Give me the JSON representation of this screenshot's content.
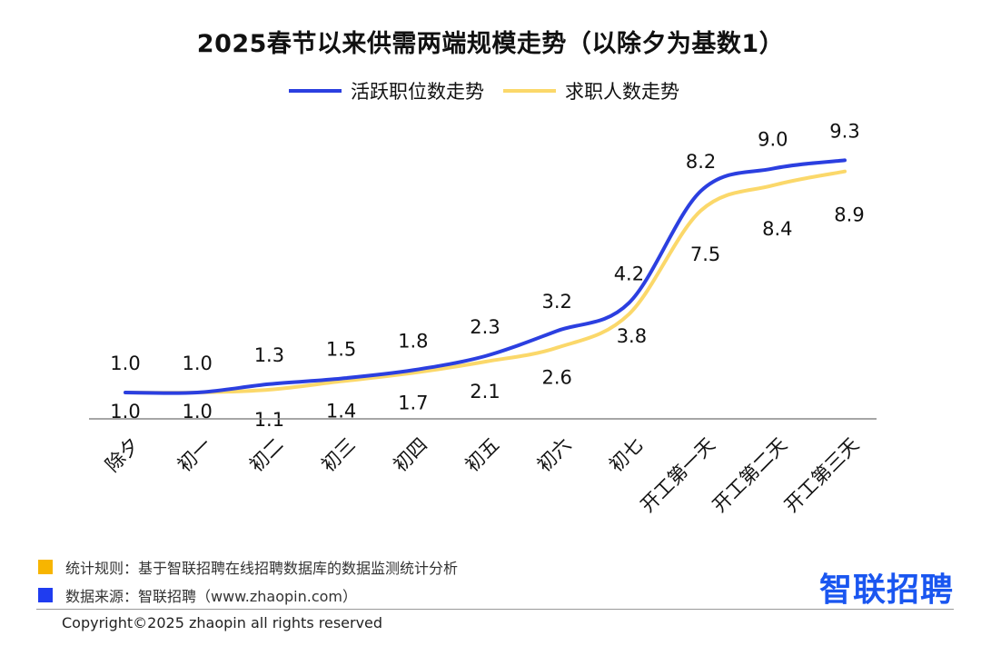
{
  "chart_data": {
    "type": "line",
    "title": "2025春节以来供需两端规模走势（以除夕为基数1）",
    "categories": [
      "除夕",
      "初一",
      "初二",
      "初三",
      "初四",
      "初五",
      "初六",
      "初七",
      "开工第一天",
      "开工第二天",
      "开工第三天"
    ],
    "series": [
      {
        "name": "活跃职位数走势",
        "color": "#2b3fe0",
        "values": [
          1.0,
          1.0,
          1.3,
          1.5,
          1.8,
          2.3,
          3.2,
          4.2,
          8.2,
          9.0,
          9.3
        ],
        "labels": [
          "1.0",
          "1.0",
          "1.3",
          "1.5",
          "1.8",
          "2.3",
          "3.2",
          "4.2",
          "8.2",
          "9.0",
          "9.3"
        ]
      },
      {
        "name": "求职人数走势",
        "color": "#fbd86a",
        "values": [
          1.0,
          1.0,
          1.1,
          1.4,
          1.7,
          2.1,
          2.6,
          3.8,
          7.5,
          8.4,
          8.9
        ],
        "labels": [
          "1.0",
          "1.0",
          "1.1",
          "1.4",
          "1.7",
          "2.1",
          "2.6",
          "3.8",
          "7.5",
          "8.4",
          "8.9"
        ]
      }
    ],
    "legend_position": "top-center",
    "grid": false
  },
  "footnotes": [
    {
      "text": "统计规则：基于智联招聘在线招聘数据库的数据监测统计分析",
      "color": "#f7b500"
    },
    {
      "text": "数据来源：智联招聘（www.zhaopin.com）",
      "color": "#1f3cf0"
    }
  ],
  "copyright": "Copyright©2025 zhaopin all rights reserved",
  "brand": "智联招聘"
}
